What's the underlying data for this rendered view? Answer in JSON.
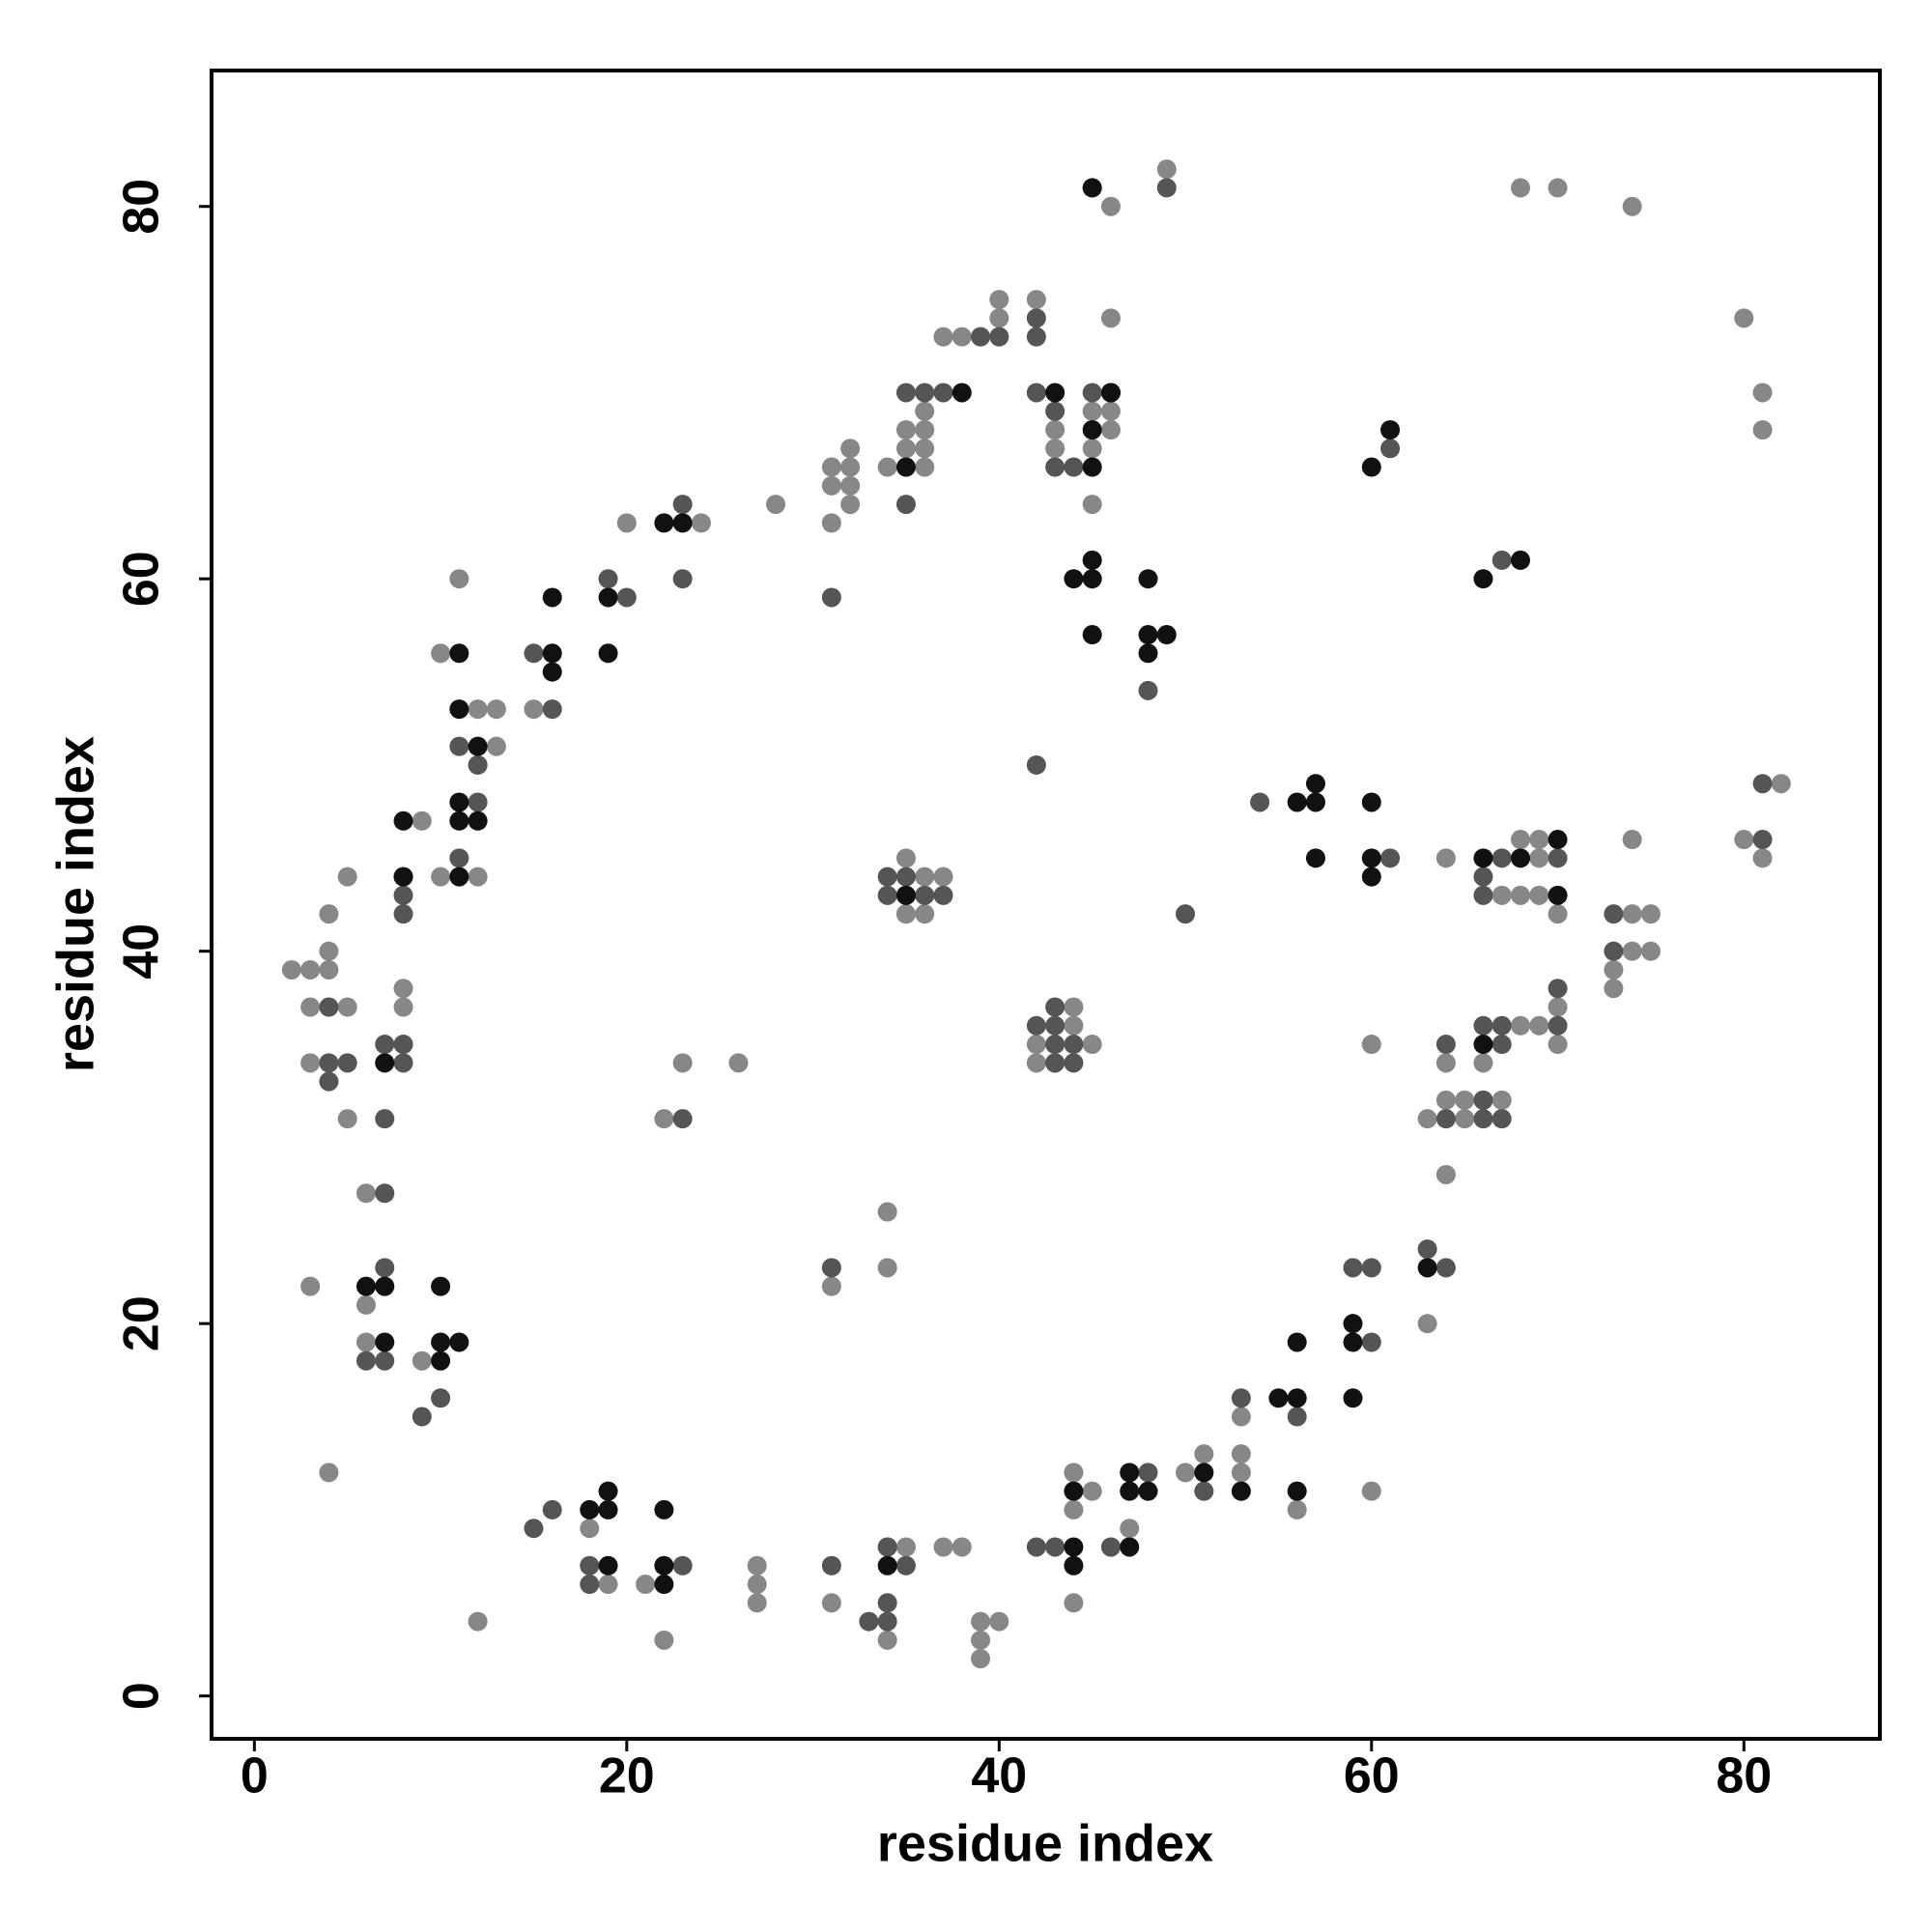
{
  "chart_data": {
    "type": "scatter",
    "xlabel": "residue index",
    "ylabel": "residue index",
    "xlim": [
      -2.3,
      87.3
    ],
    "ylim": [
      -2.3,
      87.3
    ],
    "xticks": [
      0,
      20,
      40,
      60,
      80
    ],
    "yticks": [
      0,
      20,
      40,
      60,
      80
    ],
    "grid": false,
    "series": [
      {
        "color": "#878787",
        "x": [
          2,
          3,
          4,
          4,
          4,
          3,
          5,
          3,
          5,
          5,
          6,
          3,
          4,
          6,
          6,
          8,
          8,
          8,
          9,
          9,
          10,
          10,
          11,
          12,
          13,
          13,
          12,
          12,
          12,
          15,
          18,
          19,
          20,
          21,
          22,
          22,
          23,
          24,
          26,
          27,
          27,
          27,
          28,
          31,
          31,
          31,
          31,
          31,
          32,
          32,
          32,
          32,
          34,
          34,
          34,
          35,
          34,
          35,
          36,
          36,
          37,
          35,
          34,
          36,
          35,
          36,
          35,
          36,
          36,
          35,
          37,
          37,
          38,
          38,
          40,
          40,
          39,
          39,
          39,
          40,
          42,
          43,
          43,
          45,
          45,
          46,
          46,
          45,
          46,
          45,
          46,
          49,
          42,
          44,
          44,
          42,
          45,
          44,
          44,
          44,
          45,
          46,
          47,
          50,
          51,
          53,
          53,
          53,
          56,
          60,
          60,
          63,
          64,
          63,
          65,
          64,
          65,
          66,
          67,
          64,
          66,
          68,
          69,
          70,
          70,
          64,
          69,
          67,
          68,
          69,
          68,
          69,
          70,
          74,
          75,
          74,
          75,
          73,
          73,
          74,
          68,
          70,
          74,
          80,
          81,
          81,
          80,
          81,
          82
        ],
        "values": [
          39,
          39,
          39,
          40,
          42,
          37,
          37,
          34,
          44,
          31,
          27,
          22,
          12,
          21,
          19,
          35,
          37,
          38,
          47,
          18,
          44,
          56,
          60,
          53,
          53,
          51,
          50,
          44,
          4,
          53,
          9,
          6,
          63,
          6,
          3,
          31,
          34,
          63,
          34,
          7,
          6,
          5,
          64,
          5,
          22,
          63,
          65,
          66,
          64,
          65,
          66,
          67,
          3,
          8,
          26,
          42,
          23,
          42,
          42,
          44,
          44,
          45,
          66,
          66,
          67,
          67,
          68,
          68,
          69,
          8,
          8,
          73,
          73,
          8,
          74,
          75,
          4,
          3,
          2,
          4,
          75,
          68,
          67,
          67,
          69,
          69,
          68,
          64,
          74,
          81,
          80,
          82,
          35,
          37,
          36,
          34,
          35,
          5,
          10,
          12,
          11,
          8,
          9,
          12,
          13,
          12,
          13,
          15,
          10,
          11,
          35,
          20,
          28,
          31,
          31,
          32,
          32,
          32,
          32,
          34,
          34,
          36,
          36,
          35,
          37,
          45,
          45,
          43,
          43,
          43,
          46,
          46,
          42,
          42,
          42,
          40,
          40,
          39,
          38,
          46,
          81,
          81,
          80,
          74,
          70,
          68,
          46,
          45,
          49
        ]
      },
      {
        "color": "#555555",
        "x": [
          4,
          4,
          5,
          4,
          7,
          7,
          7,
          6,
          7,
          7,
          8,
          8,
          8,
          8,
          9,
          10,
          11,
          12,
          12,
          11,
          15,
          16,
          15,
          16,
          18,
          18,
          19,
          20,
          23,
          23,
          23,
          23,
          31,
          31,
          31,
          33,
          34,
          34,
          34,
          35,
          34,
          35,
          36,
          37,
          34,
          35,
          35,
          35,
          36,
          37,
          39,
          40,
          42,
          42,
          42,
          43,
          43,
          44,
          45,
          49,
          48,
          42,
          43,
          43,
          43,
          43,
          44,
          42,
          43,
          44,
          42,
          43,
          46,
          48,
          51,
          53,
          56,
          60,
          59,
          60,
          50,
          54,
          61,
          61,
          63,
          64,
          64,
          66,
          64,
          66,
          67,
          67,
          66,
          67,
          70,
          70,
          67,
          70,
          66,
          66,
          67,
          73,
          73,
          81,
          81
        ],
        "values": [
          37,
          34,
          34,
          33,
          27,
          23,
          31,
          18,
          18,
          35,
          43,
          42,
          34,
          35,
          15,
          16,
          51,
          48,
          50,
          45,
          56,
          53,
          9,
          10,
          7,
          6,
          60,
          59,
          7,
          31,
          64,
          60,
          59,
          7,
          23,
          4,
          4,
          5,
          8,
          7,
          43,
          43,
          43,
          43,
          44,
          44,
          64,
          70,
          70,
          70,
          73,
          73,
          74,
          73,
          70,
          66,
          69,
          66,
          70,
          81,
          54,
          50,
          37,
          36,
          35,
          34,
          34,
          36,
          34,
          35,
          8,
          8,
          8,
          12,
          11,
          16,
          15,
          19,
          23,
          23,
          42,
          48,
          45,
          67,
          24,
          23,
          31,
          31,
          35,
          32,
          31,
          35,
          36,
          36,
          36,
          38,
          45,
          45,
          44,
          43,
          61,
          42,
          40,
          46,
          49
        ]
      },
      {
        "color": "#111111",
        "x": [
          6,
          7,
          7,
          7,
          8,
          8,
          8,
          10,
          10,
          11,
          10,
          11,
          11,
          12,
          11,
          11,
          12,
          11,
          16,
          16,
          16,
          18,
          19,
          19,
          19,
          19,
          19,
          22,
          22,
          22,
          22,
          23,
          35,
          34,
          35,
          38,
          43,
          45,
          45,
          45,
          46,
          46,
          44,
          45,
          45,
          45,
          48,
          48,
          49,
          48,
          44,
          44,
          44,
          47,
          47,
          47,
          48,
          51,
          53,
          55,
          56,
          56,
          56,
          59,
          59,
          59,
          56,
          57,
          57,
          57,
          60,
          60,
          60,
          60,
          61,
          63,
          66,
          66,
          68,
          70,
          70,
          66,
          68
        ],
        "values": [
          22,
          22,
          19,
          34,
          44,
          44,
          47,
          18,
          19,
          19,
          22,
          56,
          53,
          51,
          48,
          47,
          47,
          44,
          56,
          55,
          59,
          10,
          10,
          11,
          7,
          59,
          56,
          6,
          7,
          10,
          63,
          63,
          66,
          7,
          43,
          70,
          70,
          66,
          68,
          81,
          70,
          70,
          60,
          60,
          61,
          57,
          60,
          57,
          57,
          56,
          7,
          8,
          11,
          8,
          11,
          12,
          11,
          12,
          11,
          16,
          16,
          19,
          11,
          16,
          19,
          20,
          48,
          48,
          49,
          45,
          48,
          45,
          44,
          66,
          68,
          23,
          35,
          45,
          45,
          46,
          43,
          60,
          61
        ]
      }
    ]
  }
}
